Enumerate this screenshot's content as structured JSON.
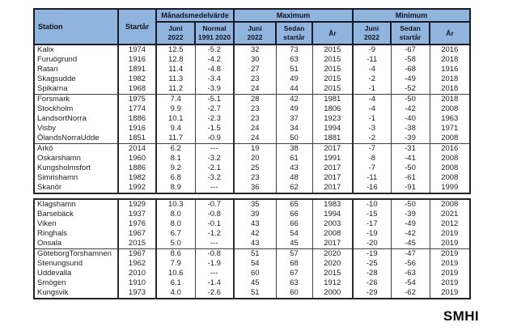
{
  "page": {
    "logo": "SMHI"
  },
  "colors": {
    "header_bg": "#8fb4de",
    "header_border": "#1a1a24",
    "grid_border": "#3f3f46",
    "text": "#1d1d1d",
    "background": "#ffffff"
  },
  "table": {
    "header": {
      "station": "Station",
      "startyear": "Startår",
      "monthly_mean": "Månadsmedelvärde",
      "maximum": "Maximum",
      "minimum": "Minimum"
    },
    "subheaders": [
      [
        "Juni",
        "2022"
      ],
      [
        "Normal",
        "1991 2020"
      ],
      [
        "Juni",
        "2022"
      ],
      [
        "Sedan",
        "startår"
      ],
      [
        "År",
        ""
      ],
      [
        "Juni",
        "2022"
      ],
      [
        "Sedan",
        "startår"
      ],
      [
        "År",
        ""
      ]
    ],
    "blocks": [
      {
        "groups": [
          [
            [
              "Kalix",
              "1974",
              "12.5",
              "-5.2",
              "32",
              "73",
              "2015",
              "-9",
              "-67",
              "2016"
            ],
            [
              "Furuögrund",
              "1916",
              "12.8",
              "-4.2",
              "30",
              "63",
              "2015",
              "-11",
              "-58",
              "2018"
            ],
            [
              "Ratan",
              "1891",
              "11.4",
              "-4.8",
              "27",
              "51",
              "2015",
              "-4",
              "-68",
              "1916"
            ],
            [
              "Skagsudde",
              "1982",
              "11.3",
              "-3.4",
              "23",
              "49",
              "2015",
              "-2",
              "-49",
              "2018"
            ],
            [
              "Spikarna",
              "1968",
              "11.2",
              "-3.9",
              "24",
              "44",
              "2015",
              "-1",
              "-52",
              "2018"
            ]
          ],
          [
            [
              "Forsmark",
              "1975",
              "7.4",
              "-5.1",
              "28",
              "42",
              "1981",
              "-4",
              "-50",
              "2018"
            ],
            [
              "Stockholm",
              "1774",
              "9.9",
              "-2.7",
              "23",
              "49",
              "1806",
              "-4",
              "-42",
              "2008"
            ],
            [
              "LandsortNorra",
              "1886",
              "10.1",
              "-2.3",
              "23",
              "37",
              "1923",
              "-1",
              "-40",
              "1963"
            ],
            [
              "Visby",
              "1916",
              "9.4",
              "-1.5",
              "24",
              "34",
              "1994",
              "-3",
              "-38",
              "1971"
            ],
            [
              "ÖlandsNorraUdde",
              "1851",
              "11.7",
              "-0.9",
              "24",
              "50",
              "1881",
              "-2",
              "-39",
              "2008"
            ]
          ],
          [
            [
              "Arkö",
              "2014",
              "6.2",
              "---",
              "19",
              "38",
              "2017",
              "-7",
              "-31",
              "2016"
            ],
            [
              "Oskarshamn",
              "1960",
              "8.1",
              "-3.2",
              "20",
              "61",
              "1991",
              "-8",
              "-41",
              "2008"
            ],
            [
              "Kungsholmsfort",
              "1886",
              "9.2",
              "-2.1",
              "25",
              "43",
              "2017",
              "-7",
              "-50",
              "2008"
            ],
            [
              "Simrishamn",
              "1982",
              "6.8",
              "-3.2",
              "23",
              "48",
              "2017",
              "-11",
              "-61",
              "2008"
            ],
            [
              "Skanör",
              "1992",
              "8.9",
              "---",
              "36",
              "62",
              "2017",
              "-16",
              "-91",
              "1999"
            ]
          ]
        ]
      },
      {
        "groups": [
          [
            [
              "Klagshamn",
              "1929",
              "10.3",
              "-0.7",
              "35",
              "65",
              "1983",
              "-10",
              "-50",
              "2008"
            ],
            [
              "Barsebäck",
              "1937",
              "8.0",
              "-0.8",
              "39",
              "66",
              "1994",
              "-15",
              "-39",
              "2021"
            ],
            [
              "Viken",
              "1976",
              "8.0",
              "-0.1",
              "43",
              "66",
              "2003",
              "-17",
              "-49",
              "2012"
            ],
            [
              "Ringhals",
              "1967",
              "6.7",
              "-1.2",
              "42",
              "54",
              "2008",
              "-19",
              "-42",
              "2019"
            ],
            [
              "Onsala",
              "2015",
              "5.0",
              "---",
              "43",
              "45",
              "2017",
              "-20",
              "-45",
              "2019"
            ]
          ],
          [
            [
              "GöteborgTorshamnen",
              "1967",
              "8.6",
              "-0.8",
              "51",
              "57",
              "2020",
              "-19",
              "-47",
              "2019"
            ],
            [
              "Stenungsund",
              "1962",
              "7.9",
              "-1.9",
              "54",
              "68",
              "2020",
              "-25",
              "-56",
              "2019"
            ],
            [
              "Uddevalla",
              "2010",
              "10.6",
              "---",
              "60",
              "67",
              "2015",
              "-28",
              "-63",
              "2019"
            ],
            [
              "Smögen",
              "1910",
              "6.1",
              "-1.4",
              "45",
              "63",
              "1912",
              "-26",
              "-54",
              "2019"
            ],
            [
              "Kungsvik",
              "1973",
              "4.0",
              "-2.6",
              "51",
              "60",
              "2000",
              "-29",
              "-62",
              "2019"
            ]
          ]
        ]
      }
    ]
  }
}
